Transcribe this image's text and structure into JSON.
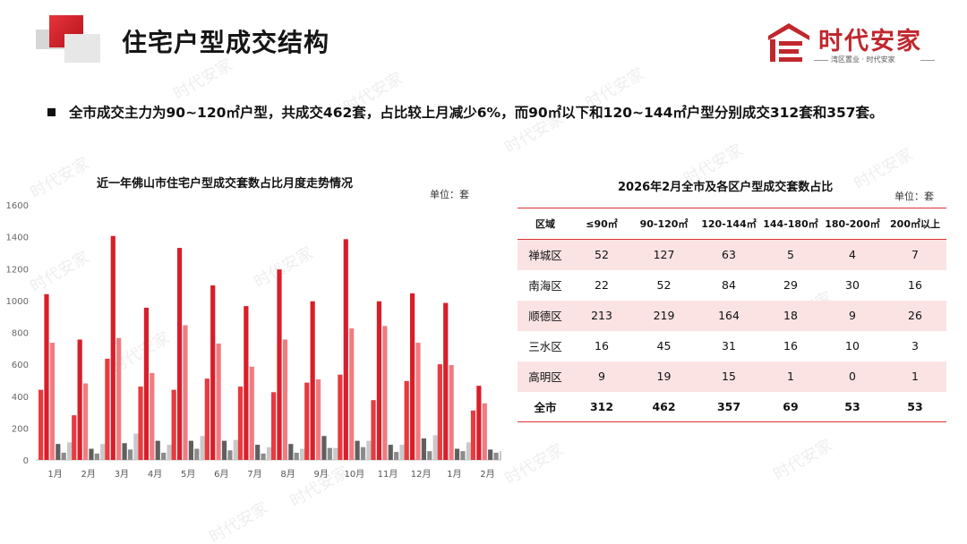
{
  "header": {
    "title": "住宅户型成交结构",
    "logo_text": "时代安家",
    "logo_sub": "湾区置业 · 时代安家"
  },
  "summary": {
    "text": "全市成交主力为90~120㎡户型，共成交462套，占比较上月减少6%，而90㎡以下和120~144㎡户型分别成交312套和357套。"
  },
  "watermark": "时代安家",
  "chart": {
    "title": "近一年佛山市住宅户型成交套数占比月度走势情况",
    "unit": "单位：套"
  },
  "chart_data": {
    "type": "bar",
    "categories": [
      "1月",
      "2月",
      "3月",
      "4月",
      "5月",
      "6月",
      "7月",
      "8月",
      "9月",
      "10月",
      "11月",
      "12月",
      "1月",
      "2月"
    ],
    "ylim": [
      0,
      1600
    ],
    "yticks": [
      0,
      200,
      400,
      600,
      800,
      1000,
      1200,
      1400,
      1600
    ],
    "grid": false,
    "legend": "none",
    "series": [
      {
        "color": "#e83a3f",
        "values": [
          440,
          280,
          635,
          460,
          440,
          510,
          460,
          425,
          485,
          535,
          375,
          495,
          600,
          310
        ]
      },
      {
        "color": "#d81e2a",
        "values": [
          1040,
          755,
          1405,
          955,
          1330,
          1095,
          965,
          1195,
          995,
          1385,
          995,
          1045,
          985,
          465
        ]
      },
      {
        "color": "#f07c80",
        "values": [
          735,
          480,
          765,
          545,
          845,
          730,
          585,
          755,
          505,
          825,
          840,
          735,
          595,
          355
        ]
      },
      {
        "color": "#5f5f5f",
        "values": [
          100,
          70,
          105,
          120,
          120,
          120,
          95,
          100,
          150,
          120,
          95,
          135,
          70,
          65
        ]
      },
      {
        "color": "#8c8c8c",
        "values": [
          45,
          40,
          65,
          45,
          70,
          60,
          40,
          45,
          75,
          80,
          50,
          55,
          55,
          45
        ]
      },
      {
        "color": "#c9c9c9",
        "values": [
          110,
          100,
          165,
          95,
          150,
          125,
          80,
          70,
          75,
          120,
          95,
          155,
          110,
          55
        ]
      }
    ]
  },
  "table": {
    "title": "2026年2月全市及各区户型成交套数占比",
    "unit": "单位：套",
    "headers": [
      "区域",
      "≤90㎡",
      "90-120㎡",
      "120-144㎡",
      "144-180㎡",
      "180-200㎡",
      "200㎡以上"
    ],
    "rows": [
      {
        "region": "禅城区",
        "values": [
          "52",
          "127",
          "63",
          "5",
          "4",
          "7"
        ]
      },
      {
        "region": "南海区",
        "values": [
          "22",
          "52",
          "84",
          "29",
          "30",
          "16"
        ]
      },
      {
        "region": "顺德区",
        "values": [
          "213",
          "219",
          "164",
          "18",
          "9",
          "26"
        ]
      },
      {
        "region": "三水区",
        "values": [
          "16",
          "45",
          "31",
          "16",
          "10",
          "3"
        ]
      },
      {
        "region": "高明区",
        "values": [
          "9",
          "19",
          "15",
          "1",
          "0",
          "1"
        ]
      }
    ],
    "total": {
      "region": "全市",
      "values": [
        "312",
        "462",
        "357",
        "69",
        "53",
        "53"
      ]
    }
  }
}
